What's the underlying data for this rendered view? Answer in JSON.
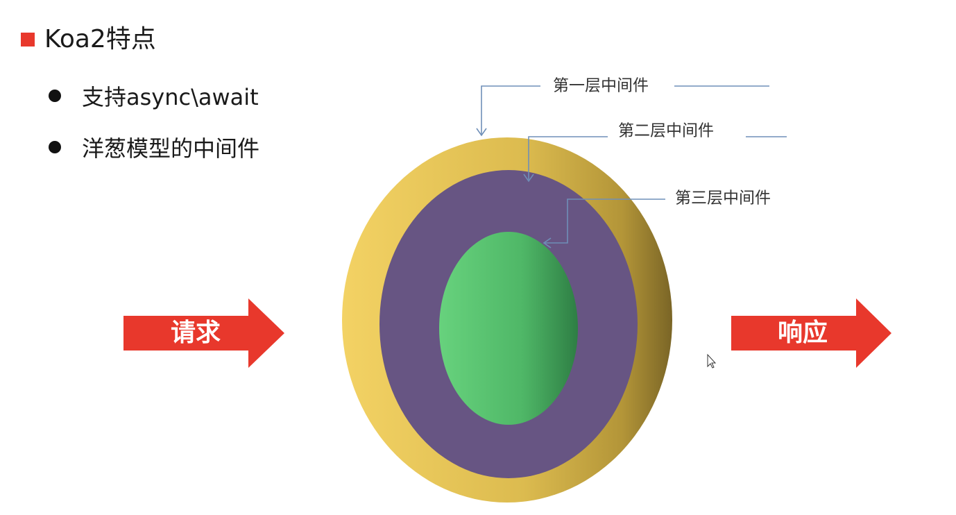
{
  "slide": {
    "title": "Koa2特点",
    "bullets": [
      "支持async\\await",
      "洋葱模型的中间件"
    ]
  },
  "diagram": {
    "layers": [
      {
        "label": "第一层中间件",
        "color": "#e8c24e"
      },
      {
        "label": "第二层中间件",
        "color": "#675583"
      },
      {
        "label": "第三层中间件",
        "color": "#4fbf6c"
      }
    ],
    "request_label": "请求",
    "response_label": "响应",
    "arrow_color": "#e8382c",
    "connector_color": "#6f8fb8"
  }
}
